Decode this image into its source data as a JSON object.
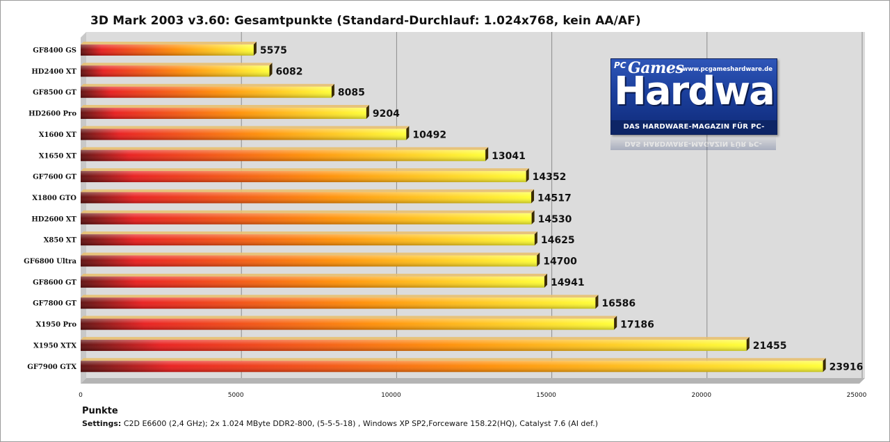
{
  "chart_data": {
    "type": "bar",
    "orientation": "horizontal",
    "title": "3D Mark 2003 v3.60: Gesamtpunkte (Standard-Durchlauf: 1.024x768,  kein AA/AF)",
    "xlabel": "Punkte",
    "ylabel": "",
    "xlim": [
      0,
      25000
    ],
    "ticks": [
      0,
      5000,
      10000,
      15000,
      20000,
      25000
    ],
    "tick_labels": [
      "0",
      "5000",
      "10000",
      "15000",
      "20000",
      "25000"
    ],
    "grid": true,
    "categories": [
      "GF8400 GS",
      "HD2400 XT",
      "GF8500 GT",
      "HD2600 Pro",
      "X1600 XT",
      "X1650 XT",
      "GF7600 GT",
      "X1800 GTO",
      "HD2600 XT",
      "X850 XT",
      "GF6800 Ultra",
      "GF8600 GT",
      "GF7800 GT",
      "X1950 Pro",
      "X1950 XTX",
      "GF7900 GTX"
    ],
    "values": [
      5575,
      6082,
      8085,
      9204,
      10492,
      13041,
      14352,
      14517,
      14530,
      14625,
      14700,
      14941,
      16586,
      17186,
      21455,
      23916
    ],
    "value_labels": [
      "5575",
      "6082",
      "8085",
      "9204",
      "10492",
      "13041",
      "14352",
      "14517",
      "14530",
      "14625",
      "14700",
      "14941",
      "16586",
      "17186",
      "21455",
      "23916"
    ],
    "bar_gradient": [
      "#5a0a0a",
      "#e81818",
      "#ff8c00",
      "#ffff30"
    ],
    "plot_background": "#dcdcdc"
  },
  "footer": {
    "settings_label": "Settings:",
    "settings_text": " C2D E6600 (2,4 GHz); 2x 1.024 MByte DDR2-800, (5-5-5-18) , Windows XP SP2,Forceware 158.22(HQ), Catalyst 7.6 (AI def.)"
  },
  "logo": {
    "pc": "PC",
    "games": "Games",
    "url": "www.pcgameshardware.de",
    "brand": "Hardware",
    "tagline": "DAS HARDWARE-MAGAZIN FÜR PC-SPIELER"
  }
}
